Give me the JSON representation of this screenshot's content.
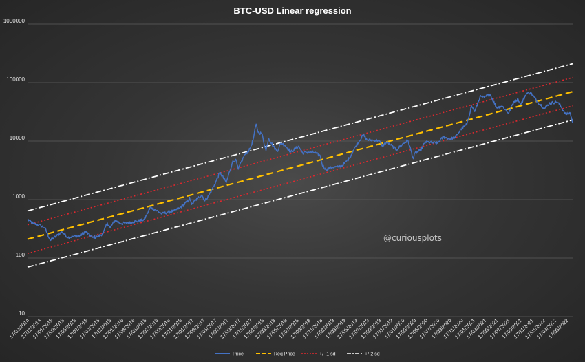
{
  "chart_data": {
    "type": "line",
    "title": "BTC-USD Linear regression",
    "y_scale": "log",
    "ylim": [
      10,
      1000000
    ],
    "yticks": [
      {
        "value": 10,
        "label": "10"
      },
      {
        "value": 100,
        "label": "100"
      },
      {
        "value": 1000,
        "label": "1000"
      },
      {
        "value": 10000,
        "label": "10000"
      },
      {
        "value": 100000,
        "label": "100000"
      },
      {
        "value": 1000000,
        "label": "1000000"
      }
    ],
    "grid": true,
    "x_start": "17/09/2014",
    "x_end": "17/06/2022",
    "x_tick_labels": [
      "17/09/2014",
      "17/11/2014",
      "17/01/2015",
      "17/03/2015",
      "17/05/2015",
      "17/07/2015",
      "17/09/2015",
      "17/11/2015",
      "17/01/2016",
      "17/03/2016",
      "17/05/2016",
      "17/07/2016",
      "17/09/2016",
      "17/11/2016",
      "17/01/2017",
      "17/03/2017",
      "17/05/2017",
      "17/07/2017",
      "17/09/2017",
      "17/11/2017",
      "17/01/2018",
      "17/03/2018",
      "17/05/2018",
      "17/07/2018",
      "17/09/2018",
      "17/11/2018",
      "17/01/2019",
      "17/03/2019",
      "17/05/2019",
      "17/07/2019",
      "17/09/2019",
      "17/11/2019",
      "17/01/2020",
      "17/03/2020",
      "17/05/2020",
      "17/07/2020",
      "17/09/2020",
      "17/11/2020",
      "17/01/2021",
      "17/03/2021",
      "17/05/2021",
      "17/07/2021",
      "17/09/2021",
      "17/11/2021",
      "17/01/2022",
      "17/03/2022",
      "17/05/2022"
    ],
    "regression": {
      "reg_start": 210,
      "reg_end": 70000,
      "minus2sd_start": 70,
      "minus2sd_end": 23000,
      "minus1sd_start": 120,
      "minus1sd_end": 40000,
      "plus1sd_start": 370,
      "plus1sd_end": 122000,
      "plus2sd_start": 640,
      "plus2sd_end": 210000
    },
    "series": [
      {
        "name": "Price",
        "color": "#4472C4",
        "style": "solid",
        "points": [
          [
            "2014-09-17",
            460
          ],
          [
            "2014-10-15",
            390
          ],
          [
            "2014-11-15",
            370
          ],
          [
            "2014-12-15",
            330
          ],
          [
            "2015-01-14",
            200
          ],
          [
            "2015-02-15",
            240
          ],
          [
            "2015-03-15",
            280
          ],
          [
            "2015-04-15",
            225
          ],
          [
            "2015-05-15",
            235
          ],
          [
            "2015-06-15",
            240
          ],
          [
            "2015-07-15",
            285
          ],
          [
            "2015-08-20",
            225
          ],
          [
            "2015-09-15",
            230
          ],
          [
            "2015-10-15",
            265
          ],
          [
            "2015-11-05",
            400
          ],
          [
            "2015-11-20",
            330
          ],
          [
            "2015-12-15",
            440
          ],
          [
            "2016-01-15",
            390
          ],
          [
            "2016-02-15",
            400
          ],
          [
            "2016-03-15",
            415
          ],
          [
            "2016-04-15",
            430
          ],
          [
            "2016-05-15",
            455
          ],
          [
            "2016-06-17",
            740
          ],
          [
            "2016-07-15",
            660
          ],
          [
            "2016-08-15",
            570
          ],
          [
            "2016-09-15",
            610
          ],
          [
            "2016-10-15",
            640
          ],
          [
            "2016-11-15",
            715
          ],
          [
            "2016-12-31",
            960
          ],
          [
            "2017-01-05",
            1100
          ],
          [
            "2017-01-15",
            820
          ],
          [
            "2017-02-15",
            1050
          ],
          [
            "2017-03-10",
            1200
          ],
          [
            "2017-03-25",
            950
          ],
          [
            "2017-04-15",
            1180
          ],
          [
            "2017-05-15",
            1800
          ],
          [
            "2017-06-12",
            2900
          ],
          [
            "2017-07-15",
            1950
          ],
          [
            "2017-08-15",
            4300
          ],
          [
            "2017-09-01",
            4900
          ],
          [
            "2017-09-15",
            3300
          ],
          [
            "2017-10-15",
            5600
          ],
          [
            "2017-11-15",
            7300
          ],
          [
            "2017-12-01",
            10500
          ],
          [
            "2017-12-17",
            19500
          ],
          [
            "2017-12-28",
            14000
          ],
          [
            "2018-01-15",
            13500
          ],
          [
            "2018-02-06",
            6900
          ],
          [
            "2018-02-20",
            11200
          ],
          [
            "2018-03-15",
            8300
          ],
          [
            "2018-04-05",
            6700
          ],
          [
            "2018-04-25",
            9300
          ],
          [
            "2018-05-15",
            8500
          ],
          [
            "2018-06-15",
            6500
          ],
          [
            "2018-07-25",
            8200
          ],
          [
            "2018-08-15",
            6300
          ],
          [
            "2018-09-15",
            6500
          ],
          [
            "2018-10-15",
            6400
          ],
          [
            "2018-11-15",
            5600
          ],
          [
            "2018-11-25",
            3900
          ],
          [
            "2018-12-15",
            3250
          ],
          [
            "2019-01-15",
            3600
          ],
          [
            "2019-02-15",
            3600
          ],
          [
            "2019-03-15",
            3950
          ],
          [
            "2019-04-15",
            5100
          ],
          [
            "2019-05-15",
            7900
          ],
          [
            "2019-06-26",
            12800
          ],
          [
            "2019-07-15",
            10500
          ],
          [
            "2019-08-15",
            10300
          ],
          [
            "2019-09-15",
            10250
          ],
          [
            "2019-10-01",
            8300
          ],
          [
            "2019-10-27",
            9500
          ],
          [
            "2019-11-15",
            8600
          ],
          [
            "2019-12-15",
            7100
          ],
          [
            "2020-01-15",
            8800
          ],
          [
            "2020-02-13",
            10300
          ],
          [
            "2020-03-12",
            5000
          ],
          [
            "2020-03-20",
            6200
          ],
          [
            "2020-04-15",
            6800
          ],
          [
            "2020-05-15",
            9700
          ],
          [
            "2020-06-15",
            9400
          ],
          [
            "2020-07-15",
            9200
          ],
          [
            "2020-08-15",
            11800
          ],
          [
            "2020-09-15",
            10900
          ],
          [
            "2020-10-15",
            11500
          ],
          [
            "2020-11-15",
            16000
          ],
          [
            "2020-12-15",
            19400
          ],
          [
            "2021-01-08",
            40000
          ],
          [
            "2021-01-25",
            32000
          ],
          [
            "2021-02-21",
            57000
          ],
          [
            "2021-03-15",
            56000
          ],
          [
            "2021-04-14",
            63000
          ],
          [
            "2021-05-19",
            37000
          ],
          [
            "2021-06-15",
            40000
          ],
          [
            "2021-07-20",
            30000
          ],
          [
            "2021-08-15",
            47000
          ],
          [
            "2021-09-07",
            52000
          ],
          [
            "2021-09-21",
            42000
          ],
          [
            "2021-10-20",
            65000
          ],
          [
            "2021-11-10",
            67500
          ],
          [
            "2021-12-15",
            48000
          ],
          [
            "2022-01-22",
            36000
          ],
          [
            "2022-02-15",
            44000
          ],
          [
            "2022-03-28",
            47000
          ],
          [
            "2022-04-15",
            40000
          ],
          [
            "2022-05-12",
            29000
          ],
          [
            "2022-06-05",
            30000
          ],
          [
            "2022-06-17",
            20500
          ]
        ]
      },
      {
        "name": "Reg Price",
        "color": "#FFC000",
        "style": "dashed"
      },
      {
        "name": "+/- 1 sd",
        "color": "#E0282E",
        "style": "dotted"
      },
      {
        "name": "+/-2 sd",
        "color": "#FFFFFF",
        "style": "dash-dot"
      }
    ],
    "annotations": [
      "@curiousplots"
    ]
  }
}
